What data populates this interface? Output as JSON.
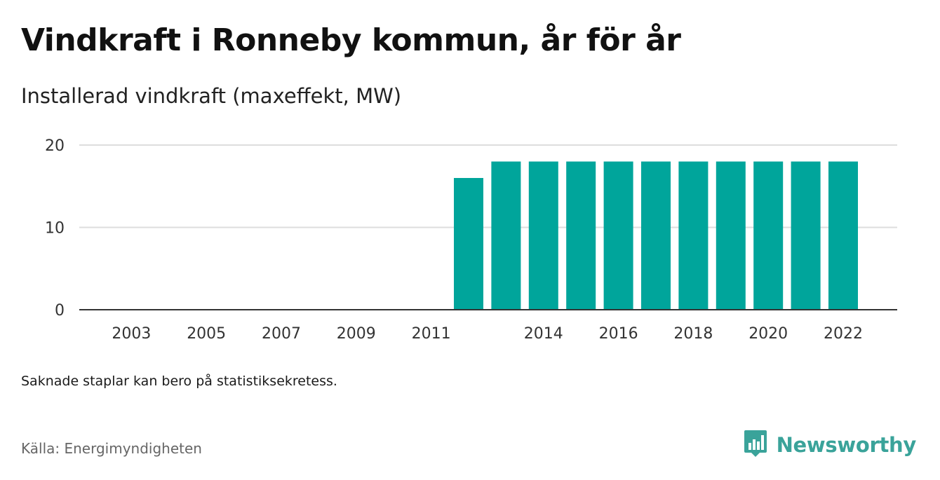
{
  "title": "Vindkraft i Ronneby kommun, år för år",
  "subtitle": "Installerad vindkraft (maxeffekt, MW)",
  "note": "Saknade staplar kan bero på statistiksekretess.",
  "source": "Källa: Energimyndigheten",
  "brand": "Newsworthy",
  "colors": {
    "bar": "#00a59b",
    "grid": "#dddddd",
    "axis": "#333333",
    "brand": "#3aa39a"
  },
  "chart_data": {
    "type": "bar",
    "categories": [
      "2002",
      "2003",
      "2004",
      "2005",
      "2006",
      "2007",
      "2008",
      "2009",
      "2010",
      "2011",
      "2012",
      "2013",
      "2014",
      "2015",
      "2016",
      "2017",
      "2018",
      "2019",
      "2020",
      "2021",
      "2022"
    ],
    "values": [
      0,
      0,
      0,
      0,
      0,
      0,
      0,
      0,
      0,
      0,
      16,
      18,
      18,
      18,
      18,
      18,
      18,
      18,
      18,
      18,
      18
    ],
    "x_tick_labels": [
      "2003",
      "2005",
      "2007",
      "2009",
      "2011",
      "2014",
      "2016",
      "2018",
      "2020",
      "2022"
    ],
    "y_ticks": [
      "0",
      "10",
      "20"
    ],
    "ylim": [
      0,
      20
    ],
    "grid": true,
    "xlabel": "",
    "ylabel": ""
  }
}
